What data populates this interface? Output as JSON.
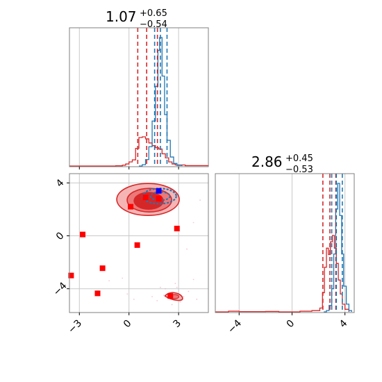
{
  "colors": {
    "red": "#d62728",
    "blue": "#1f77b4",
    "marker_red": "#ff0000",
    "marker_blue": "#0000ff",
    "grid": "#c8c8c8",
    "axes": "#7f7f7f",
    "fill_red": "#f5b5b5",
    "fill_red_mid": "#ec7878"
  },
  "chart_data": [
    {
      "type": "histogram",
      "panel": "marginal-param-1",
      "title": {
        "value": "1.07",
        "upper": "+0.65",
        "lower": "−0.54"
      },
      "xlim": [
        -3.6,
        4.8
      ],
      "red_quantiles": [
        0.53,
        1.07,
        1.72
      ],
      "blue_quantiles": [
        1.55,
        1.9,
        2.3
      ],
      "series": [
        {
          "color_key": "red",
          "bins": [
            [
              -3.6,
              0
            ],
            [
              -0.8,
              0.003
            ],
            [
              -0.4,
              0.012
            ],
            [
              -0.2,
              0.03
            ],
            [
              0,
              0.06
            ],
            [
              0.2,
              0.09
            ],
            [
              0.4,
              0.26
            ],
            [
              0.6,
              0.42
            ],
            [
              0.8,
              0.43
            ],
            [
              1.0,
              0.4
            ],
            [
              1.2,
              0.34
            ],
            [
              1.4,
              0.3
            ],
            [
              1.6,
              0.27
            ],
            [
              1.8,
              0.25
            ],
            [
              2.0,
              0.18
            ],
            [
              2.2,
              0.12
            ],
            [
              2.4,
              0.06
            ],
            [
              2.6,
              0.03
            ],
            [
              2.8,
              0.015
            ],
            [
              3.4,
              0.006
            ],
            [
              4.8,
              0
            ]
          ]
        },
        {
          "color_key": "blue",
          "bins": [
            [
              0.6,
              0
            ],
            [
              0.8,
              0.01
            ],
            [
              1.0,
              0.05
            ],
            [
              1.2,
              0.15
            ],
            [
              1.4,
              0.35
            ],
            [
              1.6,
              0.62
            ],
            [
              1.75,
              0.9
            ],
            [
              1.85,
              1.0
            ],
            [
              2.0,
              0.7
            ],
            [
              2.15,
              0.4
            ],
            [
              2.3,
              0.2
            ],
            [
              2.5,
              0.07
            ],
            [
              2.7,
              0.02
            ],
            [
              2.9,
              0.005
            ],
            [
              3.2,
              0
            ]
          ]
        }
      ]
    },
    {
      "type": "histogram",
      "panel": "marginal-param-2",
      "title": {
        "value": "2.86",
        "upper": "+0.45",
        "lower": "−0.53"
      },
      "xlim": [
        -5.8,
        4.7
      ],
      "xticks": [
        "−4",
        "0",
        "4"
      ],
      "red_quantiles": [
        2.33,
        2.86,
        3.31
      ],
      "blue_quantiles": [
        3.0,
        3.35,
        3.8
      ],
      "series": [
        {
          "color_key": "red",
          "bins": [
            [
              -5.8,
              0
            ],
            [
              -4.8,
              0.005
            ],
            [
              -4.0,
              0.002
            ],
            [
              -2.0,
              0.003
            ],
            [
              -1.0,
              0
            ],
            [
              0.6,
              0.005
            ],
            [
              1.5,
              0.01
            ],
            [
              2.1,
              0.03
            ],
            [
              2.3,
              0.15
            ],
            [
              2.45,
              0.35
            ],
            [
              2.6,
              0.5
            ],
            [
              2.75,
              0.45
            ],
            [
              2.9,
              0.55
            ],
            [
              3.05,
              0.6
            ],
            [
              3.2,
              0.5
            ],
            [
              3.35,
              0.38
            ],
            [
              3.5,
              0.25
            ],
            [
              3.65,
              0.14
            ],
            [
              3.8,
              0.06
            ],
            [
              4.0,
              0.02
            ],
            [
              4.3,
              0
            ]
          ]
        },
        {
          "color_key": "blue",
          "bins": [
            [
              2.4,
              0
            ],
            [
              2.6,
              0.01
            ],
            [
              2.8,
              0.05
            ],
            [
              3.0,
              0.18
            ],
            [
              3.15,
              0.45
            ],
            [
              3.3,
              0.8
            ],
            [
              3.45,
              1.0
            ],
            [
              3.6,
              0.75
            ],
            [
              3.75,
              0.45
            ],
            [
              3.9,
              0.2
            ],
            [
              4.1,
              0.06
            ],
            [
              4.3,
              0.01
            ],
            [
              4.5,
              0
            ]
          ]
        }
      ]
    },
    {
      "type": "scatter",
      "panel": "joint",
      "xlim": [
        -3.6,
        4.8
      ],
      "ylim": [
        -5.8,
        4.7
      ],
      "xticks": [
        "−3",
        "0",
        "3"
      ],
      "yticks": [
        "−4",
        "0",
        "4"
      ],
      "red_points": [
        [
          -3.5,
          -3.0
        ],
        [
          -2.8,
          0.1
        ],
        [
          -1.9,
          -4.35
        ],
        [
          -1.6,
          -2.45
        ],
        [
          0.1,
          2.2
        ],
        [
          0.5,
          -0.7
        ],
        [
          1.0,
          2.9
        ],
        [
          1.8,
          2.8
        ],
        [
          2.5,
          -4.55
        ],
        [
          2.9,
          0.55
        ]
      ],
      "blue_points": [
        [
          1.8,
          3.4
        ]
      ]
    }
  ]
}
